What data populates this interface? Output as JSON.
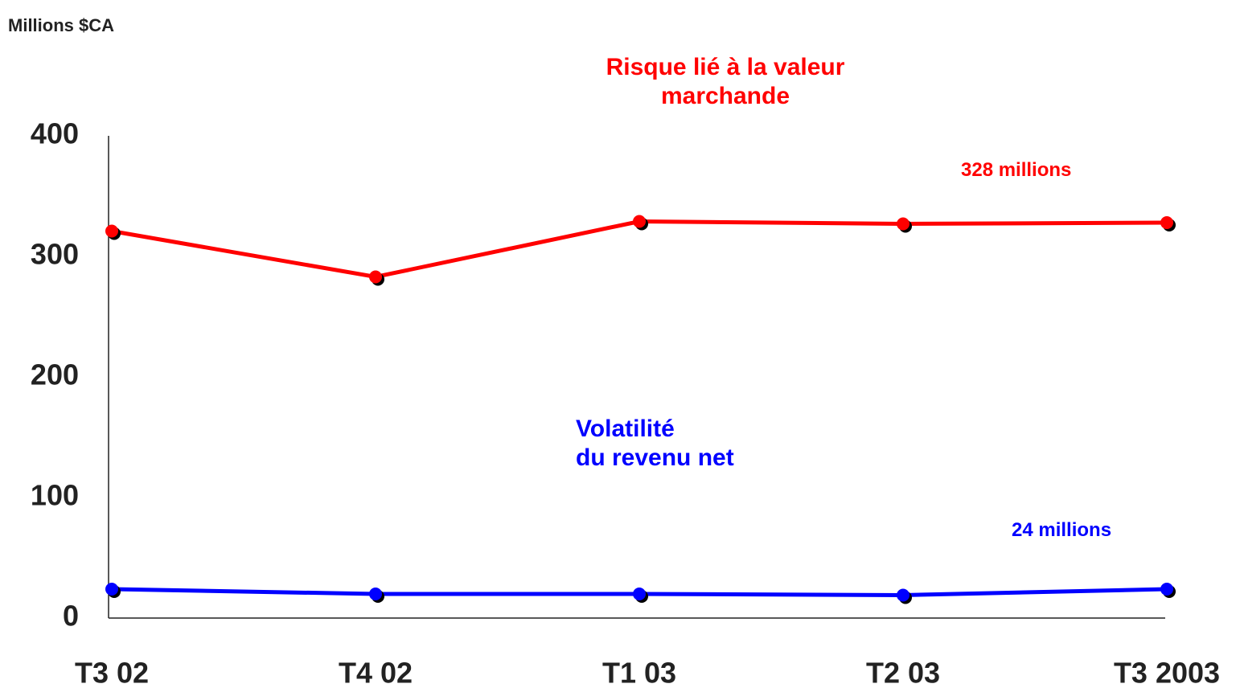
{
  "chart_data": {
    "type": "line",
    "ylabel": "Millions $CA",
    "categories": [
      "T3 02",
      "T4 02",
      "T1 03",
      "T2 03",
      "T3 2003"
    ],
    "series": [
      {
        "name": "Risque lié à la valeur\nmarchande",
        "color": "#ff0000",
        "values": [
          321,
          283,
          329,
          327,
          328
        ]
      },
      {
        "name": "Volatilité\ndu revenu net",
        "color": "#0000ff",
        "values": [
          24,
          20,
          20,
          19,
          24
        ]
      }
    ],
    "annotations": [
      {
        "text": "328 millions",
        "color": "#ff0000"
      },
      {
        "text": "24 millions",
        "color": "#0000ff"
      }
    ],
    "ylim": [
      0,
      400
    ],
    "yticks": [
      0,
      100,
      200,
      300,
      400
    ],
    "grid": false
  }
}
